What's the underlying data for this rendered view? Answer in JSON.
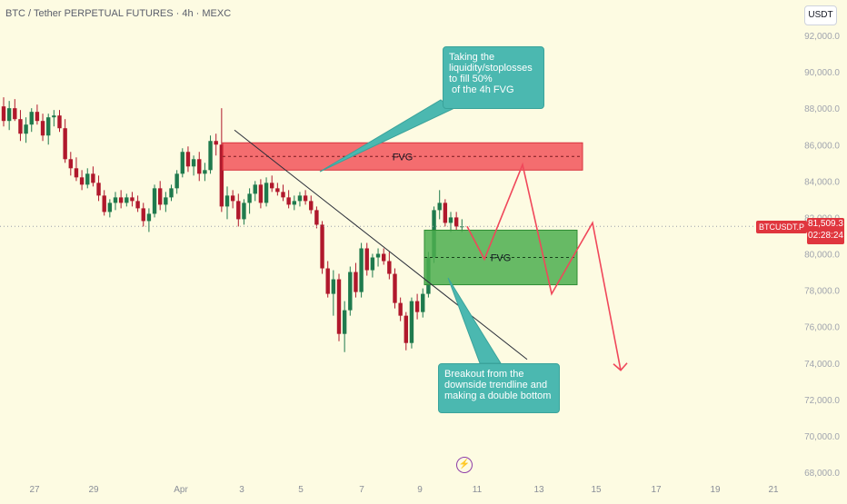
{
  "header": {
    "symbol_title": "BTC / Tether PERPETUAL FUTURES · 4h · MEXC",
    "currency_label": "USDT"
  },
  "price_tag": {
    "symbol": "BTCUSDT.P",
    "price": "81,509.3",
    "countdown": "02:28:24"
  },
  "annotations": {
    "fvg_upper_label": "FVG",
    "fvg_lower_label": "FVG",
    "callout_top": "Taking the\nliquidity/stoplosses\nto fill 50%\n of the 4h FVG",
    "callout_bottom": "Breakout from the\ndownside trendline and\nmaking a double bottom"
  },
  "colors": {
    "background": "#fdfbe2",
    "up_candle": "#1f7a4d",
    "down_candle": "#b0182c",
    "fvg_upper": "#f2545b",
    "fvg_lower": "#4cae4f",
    "projection": "#f0475a",
    "callout": "#4bb8b0",
    "price_tag": "#e0363e"
  },
  "chart_data": {
    "type": "candlestick",
    "title": "BTC / Tether PERPETUAL FUTURES · 4h · MEXC",
    "y_axis": {
      "unit": "USDT",
      "ylim": [
        67500,
        93000
      ],
      "ticks": [
        92000,
        90000,
        88000,
        86000,
        84000,
        82000,
        80000,
        78000,
        76000,
        74000,
        72000,
        70000,
        68000
      ],
      "tick_labels": [
        "92,000.0",
        "90,000.0",
        "88,000.0",
        "86,000.0",
        "84,000.0",
        "82,000.0",
        "80,000.0",
        "78,000.0",
        "76,000.0",
        "74,000.0",
        "72,000.0",
        "70,000.0",
        "68,000.0"
      ]
    },
    "x_axis": {
      "tick_labels": [
        "27",
        "29",
        "Apr",
        "3",
        "5",
        "7",
        "9",
        "11",
        "13",
        "15",
        "17",
        "19",
        "21"
      ]
    },
    "current_price": 81509.3,
    "candles": [
      [
        88100,
        88600,
        87000,
        87300
      ],
      [
        87300,
        88400,
        86800,
        88000
      ],
      [
        88000,
        88500,
        87300,
        87400
      ],
      [
        87400,
        87900,
        86200,
        86600
      ],
      [
        86600,
        87500,
        86100,
        87100
      ],
      [
        87100,
        88000,
        86700,
        87800
      ],
      [
        87800,
        88200,
        87100,
        87300
      ],
      [
        87300,
        87700,
        86200,
        86500
      ],
      [
        86500,
        87700,
        86000,
        87500
      ],
      [
        87500,
        87900,
        87000,
        87600
      ],
      [
        87600,
        87900,
        86700,
        86900
      ],
      [
        86900,
        87400,
        85000,
        85200
      ],
      [
        85200,
        85600,
        84300,
        84700
      ],
      [
        84700,
        85300,
        84000,
        84200
      ],
      [
        84200,
        84600,
        83500,
        83800
      ],
      [
        83800,
        84700,
        83600,
        84400
      ],
      [
        84400,
        84800,
        83700,
        83900
      ],
      [
        83900,
        84300,
        82900,
        83200
      ],
      [
        83200,
        83500,
        82100,
        82300
      ],
      [
        82300,
        83000,
        82000,
        82800
      ],
      [
        82800,
        83400,
        82400,
        83100
      ],
      [
        83100,
        83500,
        82500,
        82800
      ],
      [
        82800,
        83300,
        82600,
        83100
      ],
      [
        83100,
        83400,
        82600,
        82900
      ],
      [
        82900,
        83200,
        82300,
        82500
      ],
      [
        82500,
        82800,
        81500,
        81800
      ],
      [
        81800,
        82500,
        81200,
        82200
      ],
      [
        82200,
        83800,
        82000,
        83600
      ],
      [
        83600,
        84000,
        82400,
        82700
      ],
      [
        82700,
        83400,
        82300,
        83100
      ],
      [
        83100,
        83800,
        82900,
        83600
      ],
      [
        83600,
        84600,
        83300,
        84400
      ],
      [
        84400,
        85800,
        84200,
        85600
      ],
      [
        85600,
        85900,
        84500,
        84800
      ],
      [
        84800,
        85400,
        84300,
        85200
      ],
      [
        85200,
        85600,
        84000,
        84400
      ],
      [
        84400,
        85000,
        84000,
        84600
      ],
      [
        84600,
        86500,
        84400,
        86200
      ],
      [
        86200,
        86600,
        85400,
        86000
      ],
      [
        86000,
        88000,
        82300,
        82600
      ],
      [
        82600,
        83700,
        81900,
        83200
      ],
      [
        83200,
        83500,
        82500,
        82900
      ],
      [
        82900,
        83300,
        81500,
        81900
      ],
      [
        81900,
        83000,
        81600,
        82800
      ],
      [
        82800,
        83600,
        82200,
        83300
      ],
      [
        83300,
        84000,
        82900,
        83800
      ],
      [
        83800,
        84100,
        82500,
        82800
      ],
      [
        82800,
        84200,
        82600,
        83900
      ],
      [
        83900,
        84300,
        83400,
        83600
      ],
      [
        83600,
        83900,
        83200,
        83400
      ],
      [
        83400,
        83800,
        82900,
        83100
      ],
      [
        83100,
        83500,
        82500,
        82700
      ],
      [
        82700,
        83200,
        82400,
        82900
      ],
      [
        82900,
        83400,
        82600,
        83200
      ],
      [
        83200,
        83500,
        82700,
        82900
      ],
      [
        82900,
        83200,
        82200,
        82400
      ],
      [
        82400,
        82600,
        81400,
        81600
      ],
      [
        81600,
        81800,
        78900,
        79200
      ],
      [
        79200,
        79600,
        77600,
        77800
      ],
      [
        77800,
        79100,
        76600,
        78600
      ],
      [
        78600,
        78900,
        75200,
        75600
      ],
      [
        75600,
        77400,
        74600,
        76900
      ],
      [
        76900,
        79300,
        76600,
        79000
      ],
      [
        79000,
        79500,
        77600,
        77900
      ],
      [
        77900,
        80600,
        77600,
        80300
      ],
      [
        80300,
        80600,
        78800,
        79100
      ],
      [
        79100,
        80000,
        78700,
        79800
      ],
      [
        79800,
        80300,
        79300,
        80000
      ],
      [
        80000,
        80300,
        79400,
        79600
      ],
      [
        79600,
        80100,
        78600,
        78900
      ],
      [
        78900,
        79200,
        77000,
        77300
      ],
      [
        77300,
        77600,
        76300,
        76600
      ],
      [
        76600,
        76800,
        74700,
        75100
      ],
      [
        75100,
        77600,
        74800,
        77400
      ],
      [
        77400,
        77800,
        76400,
        76800
      ],
      [
        76800,
        78100,
        76500,
        77800
      ],
      [
        77800,
        80100,
        77600,
        79800
      ],
      [
        79800,
        82600,
        79500,
        82400
      ],
      [
        82400,
        83500,
        81900,
        82800
      ],
      [
        82800,
        83000,
        81500,
        81700
      ],
      [
        81700,
        82300,
        81200,
        82000
      ],
      [
        82000,
        82300,
        81300,
        81500
      ],
      [
        81500,
        81900,
        81200,
        81509
      ]
    ],
    "zones": [
      {
        "label": "FVG",
        "low": 84600,
        "high": 86100
      },
      {
        "label": "FVG",
        "low": 78300,
        "high": 81300
      }
    ],
    "trendline": {
      "start": 86800,
      "end": 74200
    },
    "projection_path": [
      81509,
      79700,
      84900,
      77800,
      81700,
      73600
    ],
    "legend": "none",
    "grid": false
  }
}
